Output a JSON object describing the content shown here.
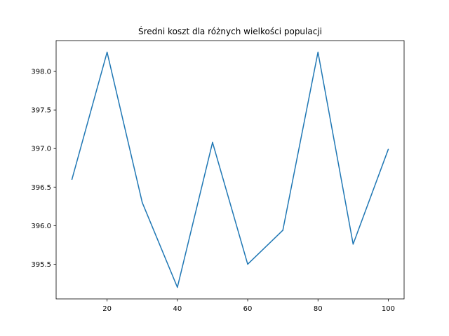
{
  "chart_data": {
    "type": "line",
    "title": "Średni koszt dla różnych wielkości populacji",
    "xlabel": "",
    "ylabel": "",
    "x": [
      10,
      20,
      30,
      40,
      50,
      60,
      70,
      80,
      90,
      100
    ],
    "series": [
      {
        "values": [
          396.6,
          398.25,
          396.3,
          395.2,
          397.08,
          395.5,
          395.94,
          398.25,
          395.76,
          396.99
        ],
        "color": "#1f77b4"
      }
    ],
    "xlim": [
      5.5,
      104.5
    ],
    "ylim": [
      395.05,
      398.4
    ],
    "xticks": [
      20,
      40,
      60,
      80,
      100
    ],
    "xtick_labels": [
      "20",
      "40",
      "60",
      "80",
      "100"
    ],
    "yticks": [
      395.5,
      396.0,
      396.5,
      397.0,
      397.5,
      398.0
    ],
    "ytick_labels": [
      "395.5",
      "396.0",
      "396.5",
      "397.0",
      "397.5",
      "398.0"
    ],
    "grid": false,
    "legend": "none"
  }
}
